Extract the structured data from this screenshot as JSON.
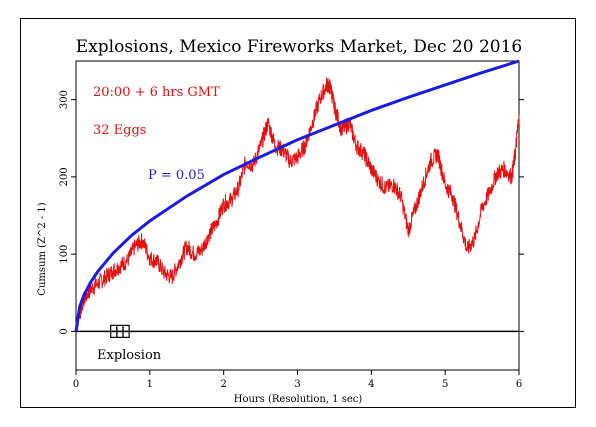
{
  "chart_data": {
    "type": "line",
    "title": "Explosions, Mexico Fireworks Market, Dec 20 2016",
    "xlabel": "Hours (Resolution, 1 sec)",
    "ylabel": "Cumsum (Z^2 - 1)",
    "xlim": [
      0,
      6
    ],
    "ylim": [
      -50,
      350
    ],
    "x_ticks": [
      0,
      1,
      2,
      3,
      4,
      5,
      6
    ],
    "y_ticks": [
      0,
      100,
      200,
      300
    ],
    "annotations": {
      "time_label": "20:00 + 6 hrs GMT",
      "eggs_label": "32 Eggs",
      "p_label": "P = 0.05",
      "event_label": "Explosion"
    },
    "event_marker": {
      "x_start": 0.47,
      "x_end": 0.72,
      "boxes": 3
    },
    "series": [
      {
        "name": "Cumsum",
        "color": "#e41010",
        "x": [
          0,
          0.1,
          0.2,
          0.3,
          0.4,
          0.5,
          0.6,
          0.7,
          0.8,
          0.9,
          1.0,
          1.1,
          1.2,
          1.3,
          1.4,
          1.5,
          1.6,
          1.7,
          1.8,
          1.9,
          2.0,
          2.1,
          2.2,
          2.3,
          2.4,
          2.5,
          2.6,
          2.7,
          2.8,
          2.9,
          3.0,
          3.1,
          3.2,
          3.3,
          3.4,
          3.45,
          3.5,
          3.6,
          3.7,
          3.8,
          3.9,
          4.0,
          4.1,
          4.2,
          4.3,
          4.4,
          4.5,
          4.6,
          4.7,
          4.8,
          4.9,
          5.0,
          5.1,
          5.2,
          5.3,
          5.4,
          5.5,
          5.6,
          5.7,
          5.8,
          5.9,
          5.95,
          6.0
        ],
        "values": [
          5,
          40,
          55,
          62,
          70,
          78,
          85,
          92,
          110,
          118,
          95,
          90,
          75,
          70,
          90,
          110,
          100,
          105,
          125,
          140,
          165,
          170,
          185,
          220,
          215,
          240,
          270,
          240,
          235,
          220,
          225,
          240,
          270,
          300,
          320,
          315,
          290,
          260,
          270,
          240,
          230,
          210,
          195,
          185,
          190,
          175,
          130,
          160,
          190,
          220,
          230,
          190,
          175,
          140,
          105,
          120,
          160,
          180,
          205,
          210,
          200,
          230,
          280
        ]
      },
      {
        "name": "P = 0.05",
        "color": "#1c1ce0",
        "x": [
          0,
          0.05,
          0.1,
          0.2,
          0.3,
          0.5,
          0.75,
          1.0,
          1.5,
          2.0,
          2.5,
          3.0,
          3.5,
          4.0,
          4.5,
          5.0,
          5.5,
          6.0
        ],
        "values": [
          0,
          32,
          45,
          64,
          78,
          101,
          124,
          143,
          175,
          203,
          226,
          248,
          267,
          286,
          303,
          319,
          335,
          350
        ]
      }
    ]
  }
}
